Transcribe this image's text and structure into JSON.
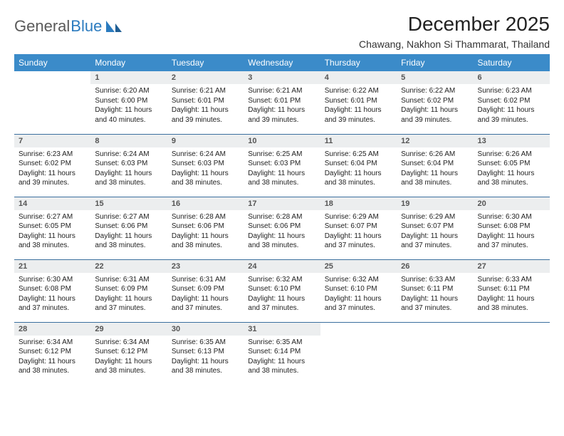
{
  "brand": {
    "word1": "General",
    "word2": "Blue"
  },
  "title": "December 2025",
  "location": "Chawang, Nakhon Si Thammarat, Thailand",
  "colors": {
    "header_bg": "#3b8bc9",
    "header_text": "#ffffff",
    "daynum_bg": "#eceeef",
    "row_border": "#3b6f9e",
    "brand_gray": "#5a5a5a",
    "brand_blue": "#2b7bbf"
  },
  "day_headers": [
    "Sunday",
    "Monday",
    "Tuesday",
    "Wednesday",
    "Thursday",
    "Friday",
    "Saturday"
  ],
  "weeks": [
    [
      {
        "n": "",
        "sr": "",
        "ss": "",
        "dl": ""
      },
      {
        "n": "1",
        "sr": "6:20 AM",
        "ss": "6:00 PM",
        "dl": "11 hours and 40 minutes."
      },
      {
        "n": "2",
        "sr": "6:21 AM",
        "ss": "6:01 PM",
        "dl": "11 hours and 39 minutes."
      },
      {
        "n": "3",
        "sr": "6:21 AM",
        "ss": "6:01 PM",
        "dl": "11 hours and 39 minutes."
      },
      {
        "n": "4",
        "sr": "6:22 AM",
        "ss": "6:01 PM",
        "dl": "11 hours and 39 minutes."
      },
      {
        "n": "5",
        "sr": "6:22 AM",
        "ss": "6:02 PM",
        "dl": "11 hours and 39 minutes."
      },
      {
        "n": "6",
        "sr": "6:23 AM",
        "ss": "6:02 PM",
        "dl": "11 hours and 39 minutes."
      }
    ],
    [
      {
        "n": "7",
        "sr": "6:23 AM",
        "ss": "6:02 PM",
        "dl": "11 hours and 39 minutes."
      },
      {
        "n": "8",
        "sr": "6:24 AM",
        "ss": "6:03 PM",
        "dl": "11 hours and 38 minutes."
      },
      {
        "n": "9",
        "sr": "6:24 AM",
        "ss": "6:03 PM",
        "dl": "11 hours and 38 minutes."
      },
      {
        "n": "10",
        "sr": "6:25 AM",
        "ss": "6:03 PM",
        "dl": "11 hours and 38 minutes."
      },
      {
        "n": "11",
        "sr": "6:25 AM",
        "ss": "6:04 PM",
        "dl": "11 hours and 38 minutes."
      },
      {
        "n": "12",
        "sr": "6:26 AM",
        "ss": "6:04 PM",
        "dl": "11 hours and 38 minutes."
      },
      {
        "n": "13",
        "sr": "6:26 AM",
        "ss": "6:05 PM",
        "dl": "11 hours and 38 minutes."
      }
    ],
    [
      {
        "n": "14",
        "sr": "6:27 AM",
        "ss": "6:05 PM",
        "dl": "11 hours and 38 minutes."
      },
      {
        "n": "15",
        "sr": "6:27 AM",
        "ss": "6:06 PM",
        "dl": "11 hours and 38 minutes."
      },
      {
        "n": "16",
        "sr": "6:28 AM",
        "ss": "6:06 PM",
        "dl": "11 hours and 38 minutes."
      },
      {
        "n": "17",
        "sr": "6:28 AM",
        "ss": "6:06 PM",
        "dl": "11 hours and 38 minutes."
      },
      {
        "n": "18",
        "sr": "6:29 AM",
        "ss": "6:07 PM",
        "dl": "11 hours and 37 minutes."
      },
      {
        "n": "19",
        "sr": "6:29 AM",
        "ss": "6:07 PM",
        "dl": "11 hours and 37 minutes."
      },
      {
        "n": "20",
        "sr": "6:30 AM",
        "ss": "6:08 PM",
        "dl": "11 hours and 37 minutes."
      }
    ],
    [
      {
        "n": "21",
        "sr": "6:30 AM",
        "ss": "6:08 PM",
        "dl": "11 hours and 37 minutes."
      },
      {
        "n": "22",
        "sr": "6:31 AM",
        "ss": "6:09 PM",
        "dl": "11 hours and 37 minutes."
      },
      {
        "n": "23",
        "sr": "6:31 AM",
        "ss": "6:09 PM",
        "dl": "11 hours and 37 minutes."
      },
      {
        "n": "24",
        "sr": "6:32 AM",
        "ss": "6:10 PM",
        "dl": "11 hours and 37 minutes."
      },
      {
        "n": "25",
        "sr": "6:32 AM",
        "ss": "6:10 PM",
        "dl": "11 hours and 37 minutes."
      },
      {
        "n": "26",
        "sr": "6:33 AM",
        "ss": "6:11 PM",
        "dl": "11 hours and 37 minutes."
      },
      {
        "n": "27",
        "sr": "6:33 AM",
        "ss": "6:11 PM",
        "dl": "11 hours and 38 minutes."
      }
    ],
    [
      {
        "n": "28",
        "sr": "6:34 AM",
        "ss": "6:12 PM",
        "dl": "11 hours and 38 minutes."
      },
      {
        "n": "29",
        "sr": "6:34 AM",
        "ss": "6:12 PM",
        "dl": "11 hours and 38 minutes."
      },
      {
        "n": "30",
        "sr": "6:35 AM",
        "ss": "6:13 PM",
        "dl": "11 hours and 38 minutes."
      },
      {
        "n": "31",
        "sr": "6:35 AM",
        "ss": "6:14 PM",
        "dl": "11 hours and 38 minutes."
      },
      {
        "n": "",
        "sr": "",
        "ss": "",
        "dl": ""
      },
      {
        "n": "",
        "sr": "",
        "ss": "",
        "dl": ""
      },
      {
        "n": "",
        "sr": "",
        "ss": "",
        "dl": ""
      }
    ]
  ],
  "labels": {
    "sunrise": "Sunrise:",
    "sunset": "Sunset:",
    "daylight": "Daylight:"
  }
}
